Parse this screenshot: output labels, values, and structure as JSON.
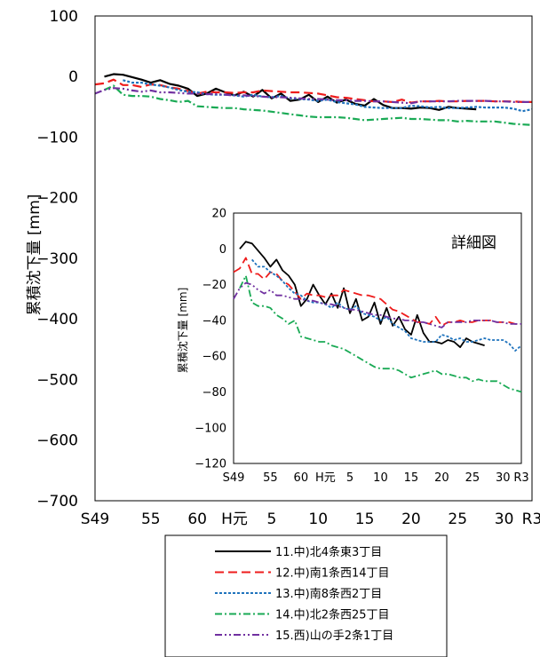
{
  "chart_data": [
    {
      "id": "main",
      "type": "line",
      "title": "",
      "xlabel": "",
      "ylabel": "累積沈下量 [mm]",
      "ylim": [
        -700,
        100
      ],
      "xlim": [
        1974,
        2021
      ],
      "yticks": [
        100,
        0,
        -100,
        -200,
        -300,
        -400,
        -500,
        -600,
        -700
      ],
      "yticklabels": [
        "100",
        "0",
        "−100",
        "−200",
        "−300",
        "−400",
        "−500",
        "−600",
        "−700"
      ],
      "xticks": [
        {
          "value": 1974,
          "label": "S49"
        },
        {
          "value": 1980,
          "label": "55"
        },
        {
          "value": 1985,
          "label": "60"
        },
        {
          "value": 1989,
          "label": "H元"
        },
        {
          "value": 1993,
          "label": "5"
        },
        {
          "value": 1998,
          "label": "10"
        },
        {
          "value": 2003,
          "label": "15"
        },
        {
          "value": 2008,
          "label": "20"
        },
        {
          "value": 2013,
          "label": "25"
        },
        {
          "value": 2018,
          "label": "30"
        },
        {
          "value": 2021,
          "label": "R3"
        }
      ],
      "grid": false,
      "legend": "bottom"
    },
    {
      "id": "inset",
      "type": "line",
      "title": "詳細図",
      "xlabel": "",
      "ylabel": "累積沈下量 [mm]",
      "ylim": [
        -120,
        20
      ],
      "xlim": [
        1974,
        2021
      ],
      "yticks": [
        20,
        0,
        -20,
        -40,
        -60,
        -80,
        -100,
        -120
      ],
      "yticklabels": [
        "20",
        "0",
        "−20",
        "−40",
        "−60",
        "−80",
        "−100",
        "−120"
      ],
      "xticks": [
        {
          "value": 1974,
          "label": "S49"
        },
        {
          "value": 1980,
          "label": "55"
        },
        {
          "value": 1985,
          "label": "60"
        },
        {
          "value": 1989,
          "label": "H元"
        },
        {
          "value": 1993,
          "label": "5"
        },
        {
          "value": 1998,
          "label": "10"
        },
        {
          "value": 2003,
          "label": "15"
        },
        {
          "value": 2008,
          "label": "20"
        },
        {
          "value": 2013,
          "label": "25"
        },
        {
          "value": 2018,
          "label": "30"
        },
        {
          "value": 2021,
          "label": "R3"
        }
      ],
      "grid": false
    }
  ],
  "series": [
    {
      "name": "11.中)北4条東3丁目",
      "color": "#000000",
      "dash": "solid",
      "x": [
        1975,
        1976,
        1977,
        1978,
        1979,
        1980,
        1981,
        1982,
        1983,
        1984,
        1985,
        1986,
        1987,
        1988,
        1989,
        1990,
        1991,
        1992,
        1993,
        1994,
        1995,
        1996,
        1997,
        1998,
        1999,
        2000,
        2001,
        2002,
        2003,
        2004,
        2005,
        2006,
        2007,
        2008,
        2009,
        2010,
        2011,
        2012,
        2013,
        2014,
        2015
      ],
      "y": [
        0,
        4,
        3,
        -1,
        -5,
        -10,
        -6,
        -12,
        -15,
        -20,
        -32,
        -28,
        -20,
        -26,
        -31,
        -25,
        -33,
        -22,
        -36,
        -28,
        -40,
        -38,
        -30,
        -42,
        -33,
        -43,
        -38,
        -45,
        -48,
        -37,
        -47,
        -52,
        -52,
        -53,
        -51,
        -52,
        -55,
        -50,
        -52,
        -53,
        -54
      ]
    },
    {
      "name": "12.中)南1条西14丁目",
      "color": "#ee1c1c",
      "dash": "long-dash",
      "x": [
        1974,
        1975,
        1976,
        1977,
        1978,
        1979,
        1980,
        1981,
        1982,
        1983,
        1984,
        1985,
        1986,
        1987,
        1988,
        1989,
        1990,
        1991,
        1992,
        1993,
        1994,
        1995,
        1996,
        1997,
        1998,
        1999,
        2000,
        2001,
        2002,
        2003,
        2004,
        2005,
        2006,
        2007,
        2008,
        2009,
        2010,
        2011,
        2012,
        2013,
        2014,
        2015,
        2016,
        2017,
        2018,
        2019,
        2020,
        2021
      ],
      "y": [
        -13,
        -11,
        -5,
        -14,
        -14,
        -17,
        -13,
        -14,
        -18,
        -20,
        -24,
        -28,
        -25,
        -26,
        -26,
        -27,
        -26,
        -26,
        -23,
        -24,
        -25,
        -26,
        -26,
        -27,
        -28,
        -31,
        -34,
        -35,
        -37,
        -39,
        -41,
        -41,
        -42,
        -38,
        -43,
        -41,
        -41,
        -40,
        -41,
        -41,
        -40,
        -40,
        -40,
        -41,
        -41,
        -41,
        -42,
        -42
      ]
    },
    {
      "name": "13.中)南8条西2丁目",
      "color": "#1f73bd",
      "dash": "dotted",
      "x": [
        1977,
        1978,
        1979,
        1980,
        1981,
        1982,
        1983,
        1984,
        1985,
        1986,
        1987,
        1988,
        1989,
        1990,
        1991,
        1992,
        1993,
        1994,
        1995,
        1996,
        1997,
        1998,
        1999,
        2000,
        2001,
        2002,
        2003,
        2004,
        2005,
        2006,
        2007,
        2008,
        2009,
        2010,
        2011,
        2012,
        2013,
        2014,
        2015,
        2016,
        2017,
        2018,
        2019,
        2020,
        2021
      ],
      "y": [
        -6,
        -10,
        -10,
        -13,
        -15,
        -18,
        -22,
        -25,
        -26,
        -29,
        -30,
        -30,
        -31,
        -33,
        -30,
        -33,
        -34,
        -32,
        -36,
        -37,
        -38,
        -40,
        -38,
        -42,
        -44,
        -46,
        -50,
        -51,
        -52,
        -52,
        -52,
        -48,
        -49,
        -51,
        -50,
        -52,
        -52,
        -51,
        -50,
        -51,
        -51,
        -51,
        -53,
        -57,
        -54
      ]
    },
    {
      "name": "14.中)北2条西25丁目",
      "color": "#1aaa55",
      "dash": "dash-dot",
      "x": [
        1975,
        1976,
        1977,
        1978,
        1979,
        1980,
        1981,
        1982,
        1983,
        1984,
        1985,
        1986,
        1987,
        1988,
        1989,
        1990,
        1991,
        1992,
        1993,
        1994,
        1995,
        1996,
        1997,
        1998,
        1999,
        2000,
        2001,
        2002,
        2003,
        2004,
        2005,
        2006,
        2007,
        2008,
        2009,
        2010,
        2011,
        2012,
        2013,
        2014,
        2015,
        2016,
        2017,
        2018,
        2019,
        2020,
        2021
      ],
      "y": [
        -22,
        -15,
        -30,
        -32,
        -32,
        -33,
        -37,
        -39,
        -42,
        -40,
        -49,
        -50,
        -51,
        -52,
        -52,
        -54,
        -55,
        -56,
        -58,
        -60,
        -62,
        -64,
        -66,
        -67,
        -67,
        -67,
        -68,
        -70,
        -72,
        -71,
        -70,
        -69,
        -68,
        -70,
        -70,
        -71,
        -72,
        -72,
        -74,
        -73,
        -74,
        -74,
        -74,
        -76,
        -78,
        -79,
        -80
      ]
    },
    {
      "name": "15.西)山の手2条1丁目",
      "color": "#7030a0",
      "dash": "dash-dot-dot",
      "x": [
        1974,
        1975,
        1976,
        1977,
        1978,
        1979,
        1980,
        1981,
        1982,
        1983,
        1984,
        1985,
        1986,
        1987,
        1988,
        1989,
        1990,
        1991,
        1992,
        1993,
        1994,
        1995,
        1996,
        1997,
        1998,
        1999,
        2000,
        2001,
        2002,
        2003,
        2004,
        2005,
        2006,
        2007,
        2008,
        2009,
        2010,
        2011,
        2012,
        2013,
        2014,
        2015,
        2016,
        2017,
        2018,
        2019,
        2020,
        2021
      ],
      "y": [
        -28,
        -22,
        -19,
        -20,
        -23,
        -25,
        -23,
        -26,
        -26,
        -27,
        -28,
        -28,
        -29,
        -29,
        -30,
        -31,
        -31,
        -32,
        -33,
        -34,
        -34,
        -35,
        -36,
        -37,
        -37,
        -38,
        -39,
        -39,
        -40,
        -40,
        -41,
        -41,
        -42,
        -43,
        -44,
        -41,
        -41,
        -41,
        -41,
        -40,
        -40,
        -40,
        -40,
        -41,
        -41,
        -42,
        -42,
        -42
      ]
    }
  ]
}
